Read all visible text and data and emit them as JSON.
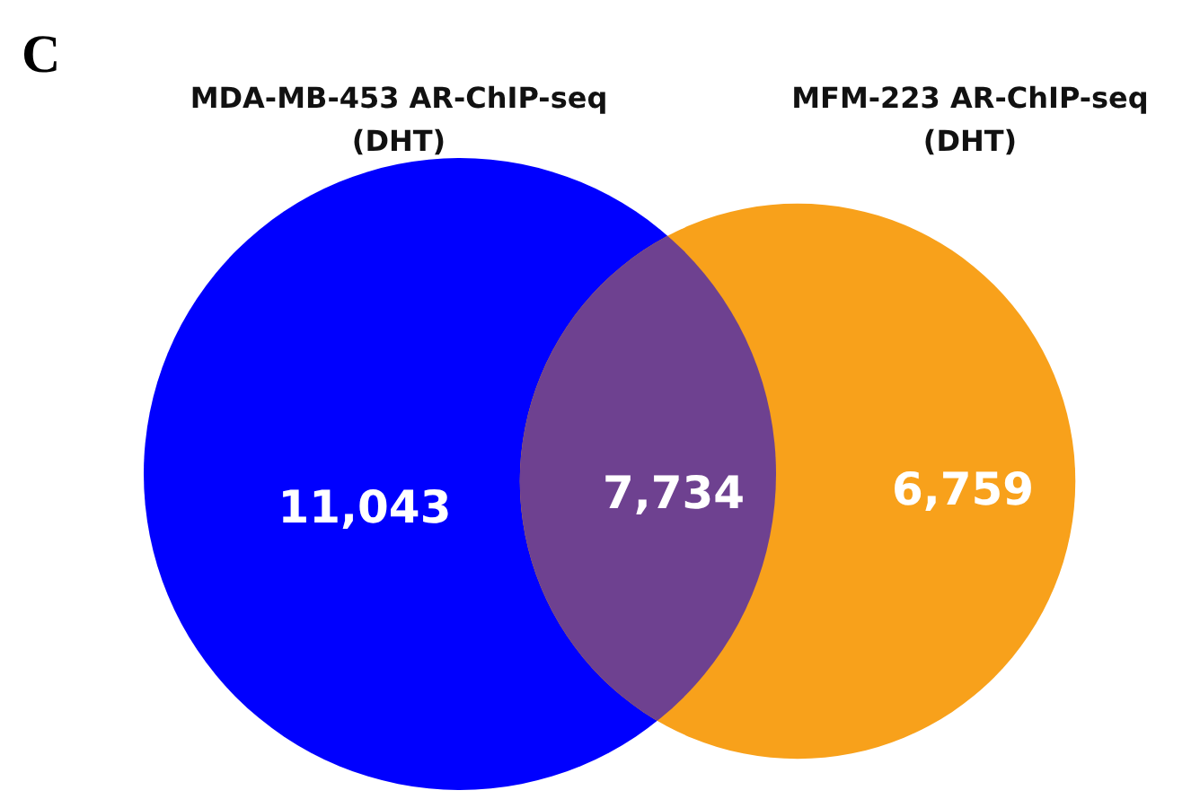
{
  "chart_data": {
    "type": "other",
    "annotations": [
      "C"
    ],
    "categories": [
      "MDA-MB-453 AR-ChIP-seq (DHT)",
      null,
      "MFM-223 AR-ChIP-seq (DHT)"
    ],
    "values": [
      11043,
      7734,
      6759
    ],
    "colors": [
      "#0000ff",
      "#6e4190",
      "#f8a11b"
    ],
    "value_labels": [
      "11,043",
      "7,734",
      "6,759"
    ]
  }
}
